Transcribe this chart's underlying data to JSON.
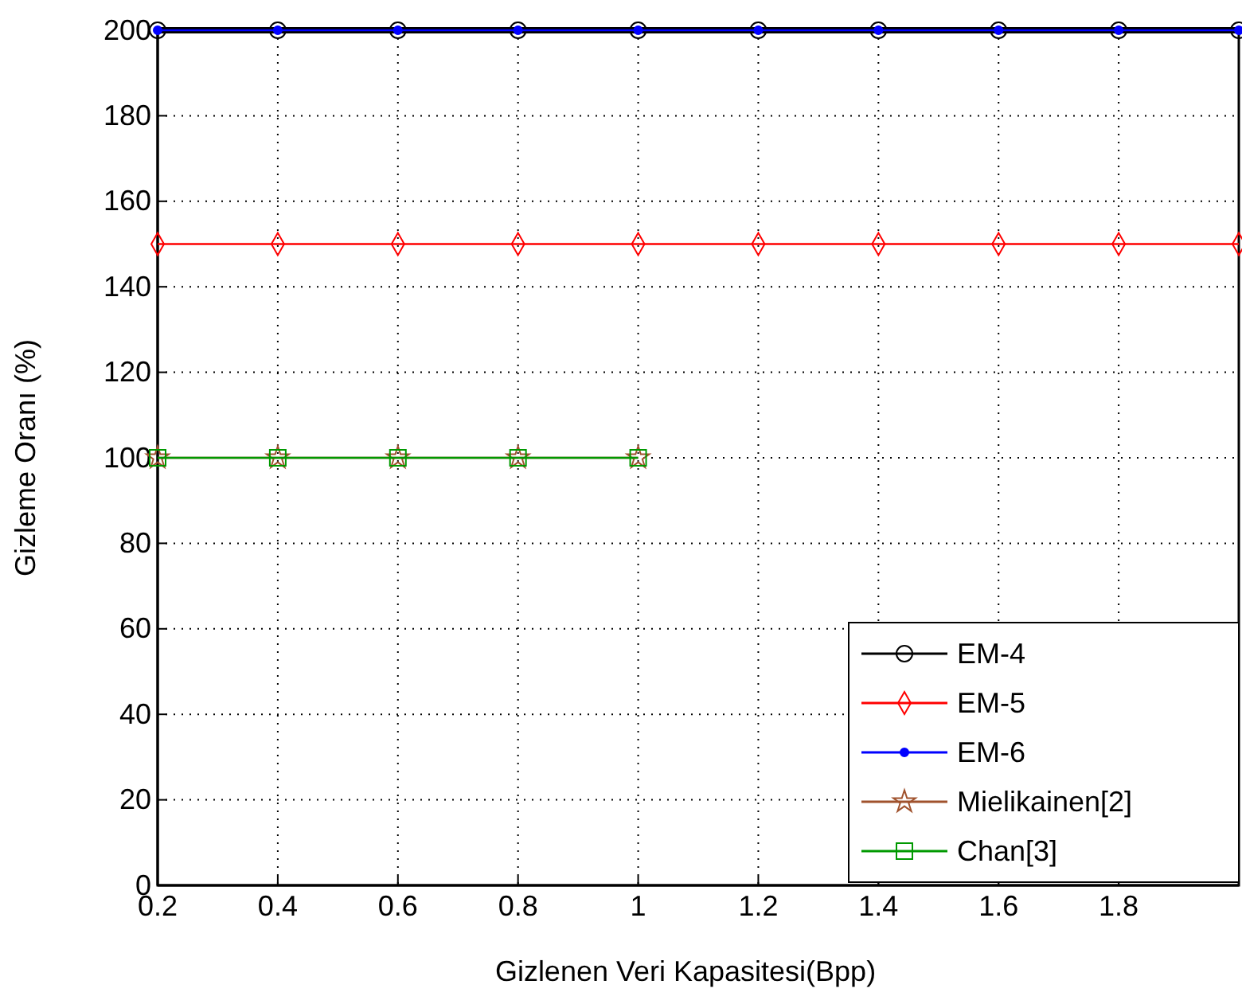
{
  "chart_data": {
    "type": "line",
    "xlabel": "Gizlenen Veri Kapasitesi(Bpp)",
    "ylabel": "Gizleme Oranı (%)",
    "xlim": [
      0.2,
      2
    ],
    "ylim": [
      0,
      200
    ],
    "xticks": [
      0.2,
      0.4,
      0.6,
      0.8,
      1,
      1.2,
      1.4,
      1.6,
      1.8
    ],
    "yticks": [
      0,
      20,
      40,
      60,
      80,
      100,
      120,
      140,
      160,
      180,
      200
    ],
    "grid": true,
    "legend": "bottom right",
    "series": [
      {
        "name": "EM-4",
        "color": "#000000",
        "marker": "circle",
        "x": [
          0.2,
          0.4,
          0.6,
          0.8,
          1,
          1.2,
          1.4,
          1.6,
          1.8,
          2
        ],
        "values": [
          200,
          200,
          200,
          200,
          200,
          200,
          200,
          200,
          200,
          200
        ]
      },
      {
        "name": "EM-5",
        "color": "#ff0000",
        "marker": "diamond",
        "x": [
          0.2,
          0.4,
          0.6,
          0.8,
          1,
          1.2,
          1.4,
          1.6,
          1.8,
          2
        ],
        "values": [
          150,
          150,
          150,
          150,
          150,
          150,
          150,
          150,
          150,
          150
        ]
      },
      {
        "name": "EM-6",
        "color": "#0000ff",
        "marker": "dot",
        "x": [
          0.2,
          0.4,
          0.6,
          0.8,
          1,
          1.2,
          1.4,
          1.6,
          1.8,
          2
        ],
        "values": [
          200,
          200,
          200,
          200,
          200,
          200,
          200,
          200,
          200,
          200
        ]
      },
      {
        "name": "Mielikainen[2]",
        "color": "#a0522d",
        "marker": "star",
        "x": [
          0.2,
          0.4,
          0.6,
          0.8,
          1
        ],
        "values": [
          100,
          100,
          100,
          100,
          100
        ]
      },
      {
        "name": "Chan[3]",
        "color": "#009900",
        "marker": "square",
        "x": [
          0.2,
          0.4,
          0.6,
          0.8,
          1
        ],
        "values": [
          100,
          100,
          100,
          100,
          100
        ]
      }
    ]
  }
}
